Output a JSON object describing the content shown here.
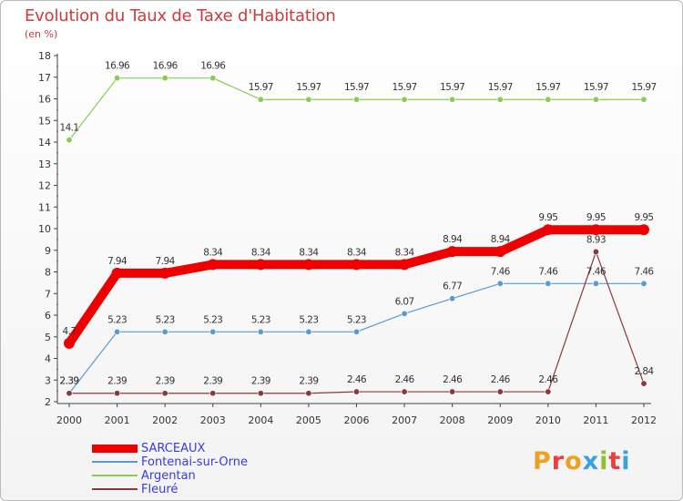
{
  "title": "Evolution du Taux de Taxe d'Habitation",
  "subtitle": "(en %)",
  "logo": {
    "text": "Proxiti",
    "colors": [
      "#f0a020",
      "#e84040",
      "#f0a020",
      "#3aa0e0",
      "#90c030",
      "#e84040",
      "#3aa0e0"
    ]
  },
  "chart_data": {
    "type": "line",
    "categories": [
      "2000",
      "2001",
      "2002",
      "2003",
      "2004",
      "2005",
      "2006",
      "2007",
      "2008",
      "2009",
      "2010",
      "2011",
      "2012"
    ],
    "ylim": [
      2,
      18
    ],
    "yticks": [
      2,
      3,
      4,
      5,
      6,
      7,
      8,
      9,
      10,
      11,
      12,
      13,
      14,
      15,
      16,
      17,
      18
    ],
    "grid": false,
    "legend_position": "bottom-left",
    "series": [
      {
        "name": "SARCEAUX",
        "color": "#ee0000",
        "width": 10,
        "markers": false,
        "values": [
          4.7,
          7.94,
          7.94,
          8.34,
          8.34,
          8.34,
          8.34,
          8.34,
          8.94,
          8.94,
          9.95,
          9.95,
          9.95
        ],
        "labels": [
          "4.7",
          "7.94",
          "7.94",
          "8.34",
          "8.34",
          "8.34",
          "8.34",
          "8.34",
          "8.94",
          "8.94",
          "9.95",
          "9.95",
          "9.95"
        ]
      },
      {
        "name": "Fontenai-sur-Orne",
        "color": "#5a9ad0",
        "width": 1.2,
        "markers": true,
        "values": [
          2.39,
          5.23,
          5.23,
          5.23,
          5.23,
          5.23,
          5.23,
          6.07,
          6.77,
          7.46,
          7.46,
          7.46,
          7.46
        ],
        "labels": [
          "2.39",
          "5.23",
          "5.23",
          "5.23",
          "5.23",
          "5.23",
          "5.23",
          "6.07",
          "6.77",
          "7.46",
          "7.46",
          "7.46",
          "7.46"
        ]
      },
      {
        "name": "Argentan",
        "color": "#88cc55",
        "width": 1.2,
        "markers": true,
        "values": [
          14.1,
          16.96,
          16.96,
          16.96,
          15.97,
          15.97,
          15.97,
          15.97,
          15.97,
          15.97,
          15.97,
          15.97,
          15.97
        ],
        "labels": [
          "14.1",
          "16.96",
          "16.96",
          "16.96",
          "15.97",
          "15.97",
          "15.97",
          "15.97",
          "15.97",
          "15.97",
          "15.97",
          "15.97",
          "15.97"
        ]
      },
      {
        "name": "Fleuré",
        "color": "#8a3838",
        "width": 1.2,
        "markers": true,
        "values": [
          2.39,
          2.39,
          2.39,
          2.39,
          2.39,
          2.39,
          2.46,
          2.46,
          2.46,
          2.46,
          2.46,
          8.93,
          2.84
        ],
        "labels": [
          "2.39",
          "2.39",
          "2.39",
          "2.39",
          "2.39",
          "2.39",
          "2.46",
          "2.46",
          "2.46",
          "2.46",
          "2.46",
          "8.93",
          "2.84"
        ]
      }
    ]
  }
}
